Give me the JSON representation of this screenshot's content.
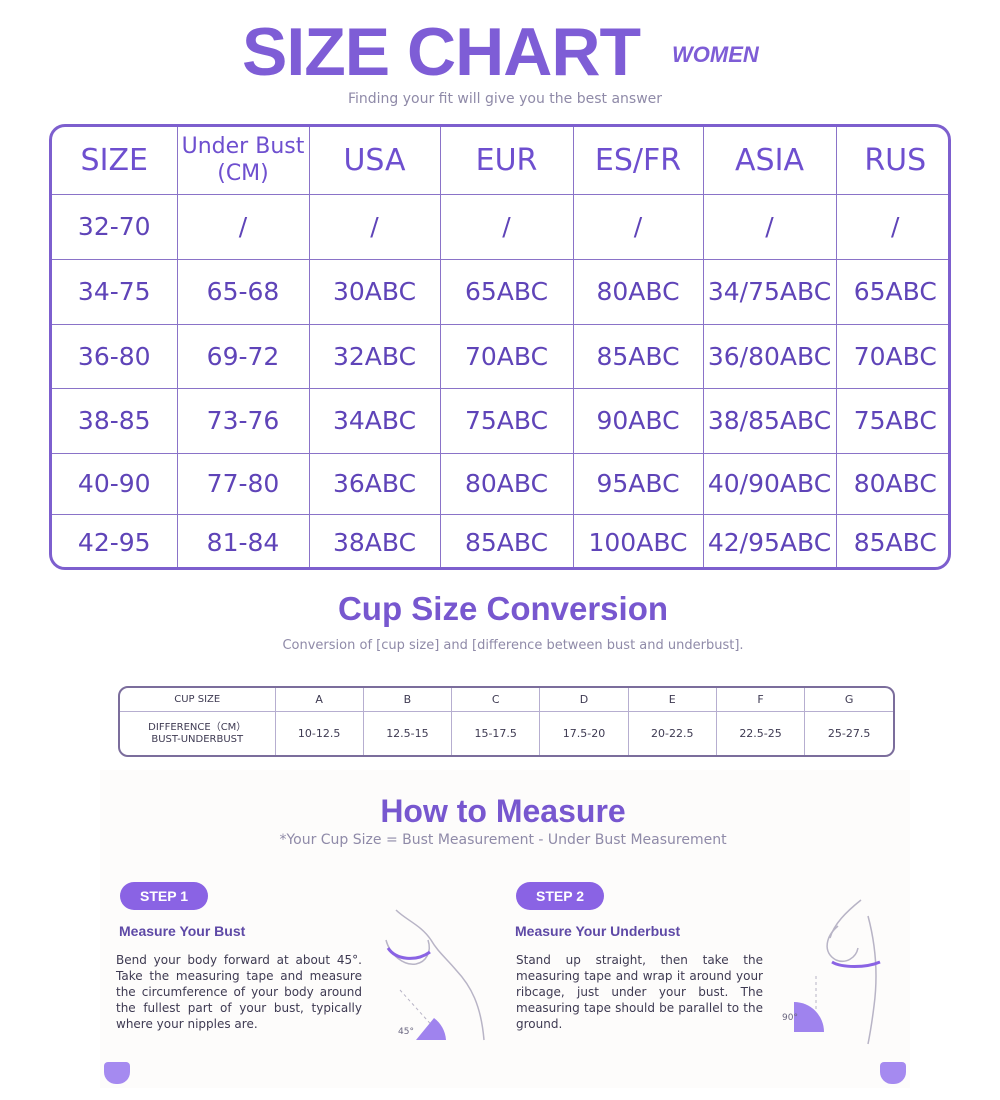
{
  "header": {
    "title": "SIZE CHART",
    "tag": "WOMEN",
    "subtitle": "Finding your fit will give you the best answer"
  },
  "size_chart": {
    "columns": [
      "SIZE",
      "Under Bust (CM)",
      "USA",
      "EUR",
      "ES/FR",
      "ASIA",
      "RUS"
    ],
    "rows": [
      [
        "32-70",
        "/",
        "/",
        "/",
        "/",
        "/",
        "/"
      ],
      [
        "34-75",
        "65-68",
        "30ABC",
        "65ABC",
        "80ABC",
        "34/75ABC",
        "65ABC"
      ],
      [
        "36-80",
        "69-72",
        "32ABC",
        "70ABC",
        "85ABC",
        "36/80ABC",
        "70ABC"
      ],
      [
        "38-85",
        "73-76",
        "34ABC",
        "75ABC",
        "90ABC",
        "38/85ABC",
        "75ABC"
      ],
      [
        "40-90",
        "77-80",
        "36ABC",
        "80ABC",
        "95ABC",
        "40/90ABC",
        "80ABC"
      ],
      [
        "42-95",
        "81-84",
        "38ABC",
        "85ABC",
        "100ABC",
        "42/95ABC",
        "85ABC"
      ]
    ]
  },
  "cup_conversion": {
    "title": "Cup Size Conversion",
    "subtitle": "Conversion of [cup size] and [difference between bust and underbust].",
    "row1_label": "CUP SIZE",
    "row2_label_line1": "DIFFERENCE（CM）",
    "row2_label_line2": "BUST-UNDERBUST",
    "cups": [
      "A",
      "B",
      "C",
      "D",
      "E",
      "F",
      "G"
    ],
    "differences": [
      "10-12.5",
      "12.5-15",
      "15-17.5",
      "17.5-20",
      "20-22.5",
      "22.5-25",
      "25-27.5"
    ]
  },
  "how_to_measure": {
    "title": "How to Measure",
    "subtitle": "*Your Cup Size = Bust Measurement - Under Bust Measurement",
    "steps": [
      {
        "pill": "STEP 1",
        "heading": "Measure Your Bust",
        "body": "Bend your body forward at about 45°. Take the measuring tape and measure the circumference of your body around the fullest part of your bust, typically where your nipples are.",
        "angle": "45°"
      },
      {
        "pill": "STEP 2",
        "heading": "Measure Your Underbust",
        "body": "Stand up straight, then take the measuring tape and wrap it around your ribcage, just under your bust. The measuring tape should be parallel to the ground.",
        "angle": "90°"
      }
    ]
  },
  "colors": {
    "accent": "#7e5dd6",
    "pill": "#8a63e4",
    "dot": "#a58af0"
  }
}
